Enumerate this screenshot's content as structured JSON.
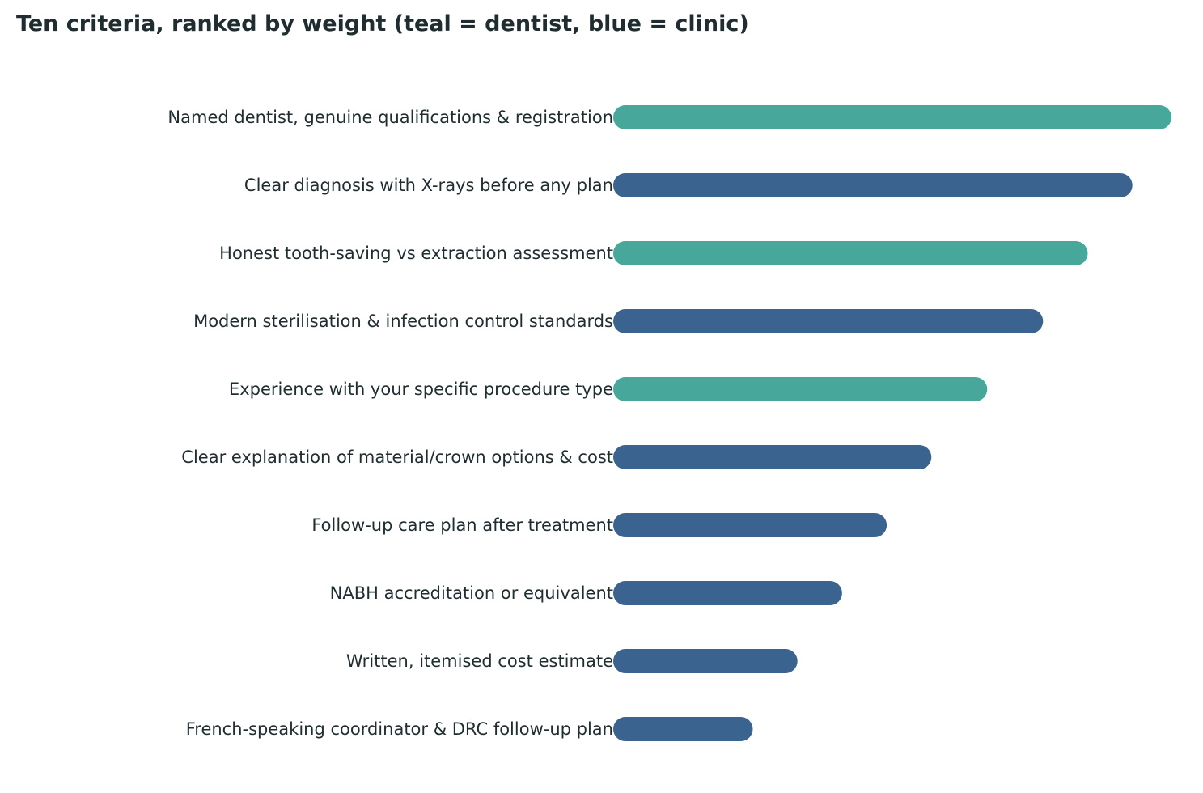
{
  "chart_data": {
    "type": "bar",
    "orientation": "horizontal",
    "title": "Ten criteria, ranked by weight (teal = dentist, blue = clinic)",
    "xlabel": "",
    "ylabel": "",
    "grid": false,
    "legend": "none",
    "xlim": [
      0,
      100
    ],
    "categories": [
      "Named dentist, genuine qualifications & registration",
      "Clear diagnosis with X-rays before any plan",
      "Honest tooth-saving vs extraction assessment",
      "Modern sterilisation & infection control standards",
      "Experience with your specific procedure type",
      "Clear explanation of material/crown options & cost",
      "Follow-up care plan after treatment",
      "NABH accreditation or equivalent",
      "Written, itemised cost estimate",
      "French-speaking coordinator & DRC follow-up plan"
    ],
    "values": [
      100,
      93,
      85,
      77,
      67,
      57,
      49,
      41,
      33,
      25
    ],
    "groups": [
      "dentist",
      "clinic",
      "dentist",
      "clinic",
      "dentist",
      "clinic",
      "clinic",
      "clinic",
      "clinic",
      "clinic"
    ],
    "colors": {
      "dentist": "#48a79b",
      "clinic": "#3a648f"
    }
  }
}
